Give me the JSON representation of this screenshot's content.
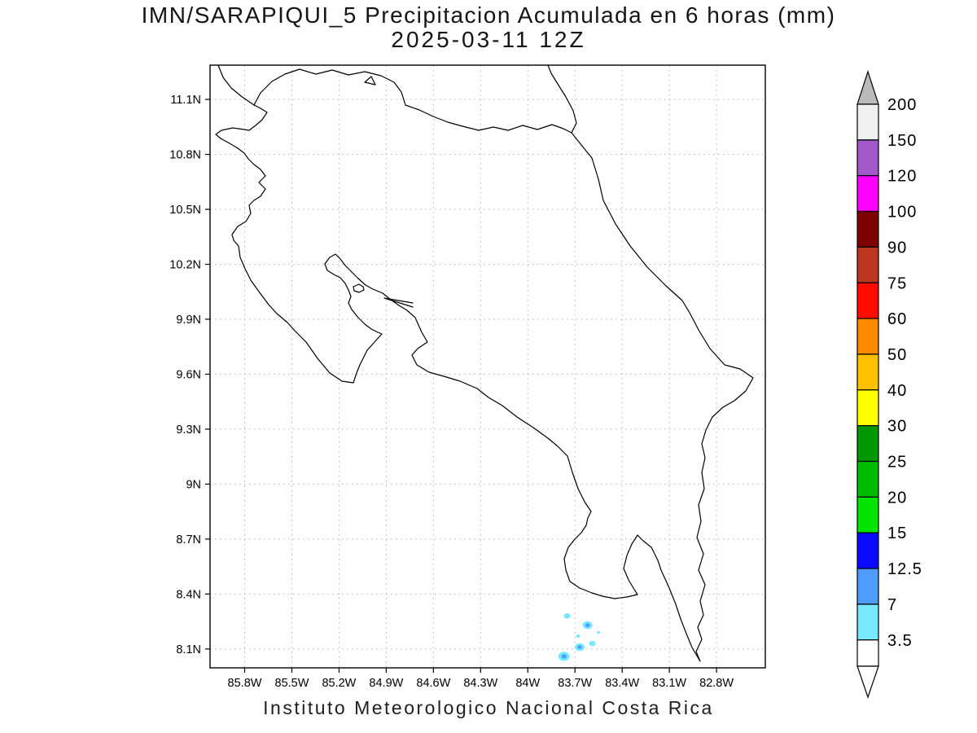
{
  "title": {
    "line1": "IMN/SARAPIQUI_5 Precipitacion Acumulada en 6 horas (mm)",
    "line2": "2025-03-11 12Z"
  },
  "caption": "Instituto Meteorologico Nacional Costa Rica",
  "map": {
    "lat_ticks": [
      {
        "label": "11.1N",
        "lat": 11.1
      },
      {
        "label": "10.8N",
        "lat": 10.8
      },
      {
        "label": "10.5N",
        "lat": 10.5
      },
      {
        "label": "10.2N",
        "lat": 10.2
      },
      {
        "label": "9.9N",
        "lat": 9.9
      },
      {
        "label": "9.6N",
        "lat": 9.6
      },
      {
        "label": "9.3N",
        "lat": 9.3
      },
      {
        "label": "9N",
        "lat": 9.0
      },
      {
        "label": "8.7N",
        "lat": 8.7
      },
      {
        "label": "8.4N",
        "lat": 8.4
      },
      {
        "label": "8.1N",
        "lat": 8.1
      }
    ],
    "lon_ticks": [
      {
        "label": "85.8W",
        "lon": 85.8
      },
      {
        "label": "85.5W",
        "lon": 85.5
      },
      {
        "label": "85.2W",
        "lon": 85.2
      },
      {
        "label": "84.9W",
        "lon": 84.9
      },
      {
        "label": "84.6W",
        "lon": 84.6
      },
      {
        "label": "84.3W",
        "lon": 84.3
      },
      {
        "label": "84W",
        "lon": 84.0
      },
      {
        "label": "83.7W",
        "lon": 83.7
      },
      {
        "label": "83.4W",
        "lon": 83.4
      },
      {
        "label": "83.1W",
        "lon": 83.1
      },
      {
        "label": "82.8W",
        "lon": 82.8
      }
    ],
    "outline_color": "#000000",
    "grid_style": "dotted"
  },
  "colorbar": {
    "unit": "mm",
    "levels": [
      "3.5",
      "7",
      "12.5",
      "15",
      "20",
      "25",
      "30",
      "40",
      "50",
      "60",
      "75",
      "90",
      "100",
      "120",
      "150",
      "200"
    ],
    "band_colors": [
      "#76e9ff",
      "#4f9cff",
      "#0a0aff",
      "#00e400",
      "#00bc00",
      "#009800",
      "#ffff00",
      "#ffc000",
      "#ff8a00",
      "#ff0b00",
      "#bf3620",
      "#7f0000",
      "#ff00ff",
      "#a158c8",
      "#f0f0f0"
    ],
    "below_color": "#ffffff",
    "above_color": "#bababa"
  },
  "chart_data": {
    "type": "heatmap",
    "title": "IMN/SARAPIQUI_5 Precipitacion Acumulada en 6 horas (mm)",
    "subtitle": "2025-03-11 12Z",
    "region": "Costa Rica",
    "x_ticks": [
      "85.8W",
      "85.5W",
      "85.2W",
      "84.9W",
      "84.6W",
      "84.3W",
      "84W",
      "83.7W",
      "83.4W",
      "83.1W",
      "82.8W"
    ],
    "y_ticks": [
      "11.1N",
      "10.8N",
      "10.5N",
      "10.2N",
      "9.9N",
      "9.6N",
      "9.3N",
      "9N",
      "8.7N",
      "8.4N",
      "8.1N"
    ],
    "colorbar_levels_mm": [
      3.5,
      7,
      12.5,
      15,
      20,
      25,
      30,
      40,
      50,
      60,
      75,
      90,
      100,
      120,
      150,
      200
    ],
    "precipitation_cells": [
      {
        "lon_w": 83.75,
        "lat_n": 8.28,
        "value_band_mm": "3.5-7",
        "radius_px": 4
      },
      {
        "lon_w": 83.62,
        "lat_n": 8.23,
        "value_band_mm": "7-12.5",
        "radius_px": 6
      },
      {
        "lon_w": 83.68,
        "lat_n": 8.17,
        "value_band_mm": "3.5-7",
        "radius_px": 2.5
      },
      {
        "lon_w": 83.59,
        "lat_n": 8.13,
        "value_band_mm": "3.5-7",
        "radius_px": 4
      },
      {
        "lon_w": 83.67,
        "lat_n": 8.11,
        "value_band_mm": "7-12.5",
        "radius_px": 6
      },
      {
        "lon_w": 83.77,
        "lat_n": 8.06,
        "value_band_mm": "7-12.5",
        "radius_px": 7
      },
      {
        "lon_w": 83.55,
        "lat_n": 8.19,
        "value_band_mm": "3.5-7",
        "radius_px": 2
      }
    ]
  }
}
